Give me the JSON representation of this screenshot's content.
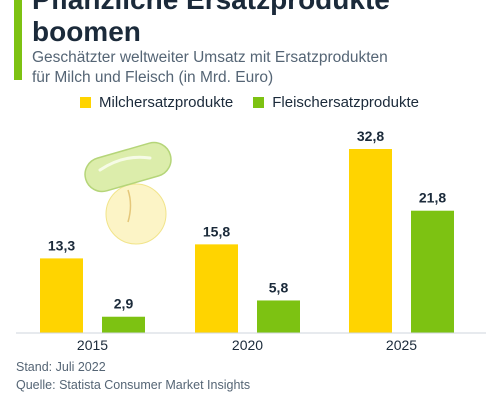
{
  "header": {
    "title_lines": [
      "Pflanzliche Ersatzprodukte",
      "boomen"
    ],
    "subtitle_lines": [
      "Geschätzter weltweiter Umsatz mit Ersatzprodukten",
      "für Milch und Fleisch (in Mrd. Euro)"
    ]
  },
  "footer": {
    "stand": "Stand: Juli 2022",
    "quelle": "Quelle: Statista Consumer Market Insights"
  },
  "colors": {
    "milch": "#ffd400",
    "fleisch": "#7dc212",
    "accent": "#7dc212",
    "text": "#1b2a3a"
  },
  "chart_data": {
    "type": "bar",
    "categories": [
      "2015",
      "2020",
      "2025"
    ],
    "series": [
      {
        "name": "Milchersatzprodukte",
        "values": [
          13.3,
          15.8,
          32.8
        ],
        "labels": [
          "13,3",
          "15,8",
          "32,8"
        ]
      },
      {
        "name": "Fleischersatzprodukte",
        "values": [
          2.9,
          5.8,
          21.8
        ],
        "labels": [
          "2,9",
          "5,8",
          "21,8"
        ]
      }
    ],
    "title": "Pflanzliche Ersatzprodukte boomen",
    "xlabel": "",
    "ylabel": "",
    "ylim": [
      0,
      32.8
    ],
    "grid": false,
    "legend": "top"
  }
}
